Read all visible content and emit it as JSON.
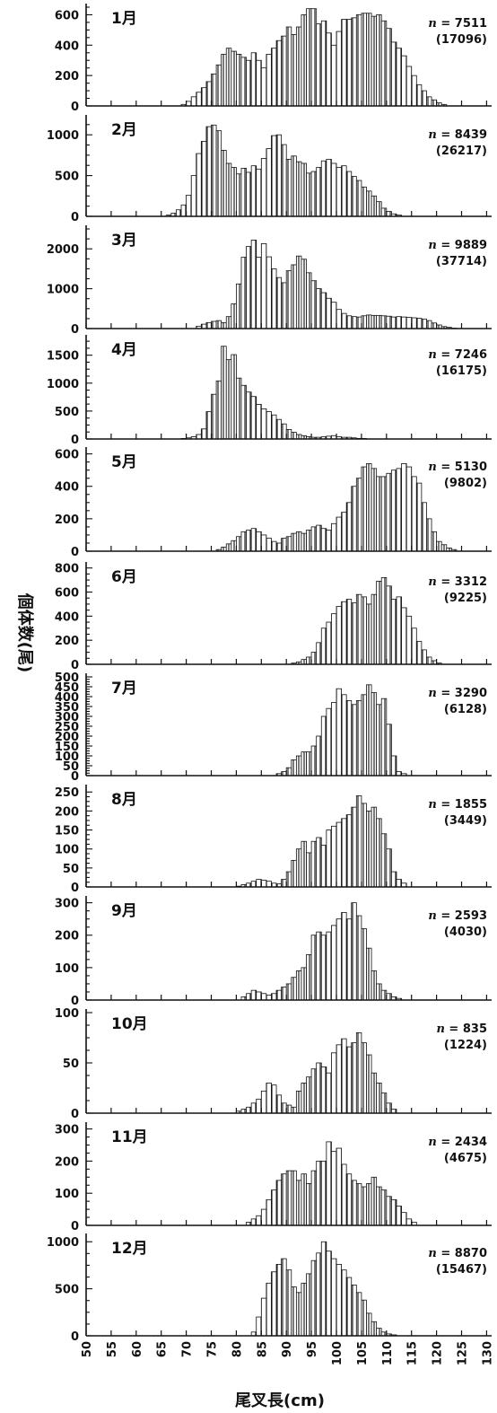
{
  "chart_data": {
    "type": "bar",
    "xlabel": "尾叉長(cm)",
    "ylabel": "個体数(尾)",
    "x_ticks": [
      50,
      55,
      60,
      65,
      70,
      75,
      80,
      85,
      90,
      95,
      100,
      105,
      110,
      115,
      120,
      125,
      130
    ],
    "xlim": [
      50,
      131
    ],
    "bin_start": 50,
    "bin_width": 1,
    "panels": [
      {
        "month": "1月",
        "n_text": "n = 7511",
        "total_text": "(17096)",
        "ylim": [
          0,
          650
        ],
        "yticks": [
          0,
          200,
          400,
          600
        ],
        "values": [
          0,
          0,
          0,
          0,
          0,
          0,
          0,
          0,
          0,
          0,
          0,
          0,
          0,
          0,
          0,
          0,
          0,
          0,
          0,
          10,
          30,
          60,
          90,
          120,
          160,
          210,
          270,
          340,
          380,
          360,
          340,
          320,
          300,
          350,
          300,
          250,
          340,
          380,
          430,
          460,
          520,
          470,
          520,
          600,
          640,
          640,
          540,
          560,
          480,
          400,
          490,
          570,
          570,
          580,
          600,
          610,
          610,
          590,
          600,
          560,
          510,
          420,
          380,
          330,
          260,
          200,
          140,
          100,
          60,
          40,
          20,
          10,
          0,
          0,
          0,
          0,
          0,
          0,
          0,
          0,
          0
        ]
      },
      {
        "month": "2月",
        "n_text": "n = 8439",
        "total_text": "(26217)",
        "ylim": [
          0,
          1200
        ],
        "yticks": [
          0,
          500,
          1000
        ],
        "values": [
          0,
          0,
          0,
          0,
          0,
          0,
          0,
          0,
          0,
          0,
          0,
          0,
          0,
          0,
          0,
          0,
          15,
          40,
          80,
          140,
          260,
          500,
          770,
          920,
          1100,
          1120,
          1050,
          810,
          650,
          600,
          520,
          590,
          540,
          620,
          580,
          710,
          830,
          990,
          1000,
          880,
          700,
          740,
          670,
          650,
          530,
          550,
          600,
          680,
          700,
          650,
          600,
          620,
          550,
          490,
          440,
          360,
          310,
          250,
          180,
          100,
          60,
          30,
          15,
          0,
          0,
          0,
          0,
          0,
          0,
          0,
          0,
          0,
          0,
          0,
          0,
          0,
          0,
          0,
          0,
          0,
          0
        ]
      },
      {
        "month": "3月",
        "n_text": "n = 9889",
        "total_text": "(37714)",
        "ylim": [
          0,
          2500
        ],
        "yticks": [
          0,
          1000,
          2000
        ],
        "values": [
          0,
          0,
          0,
          0,
          0,
          0,
          0,
          0,
          0,
          0,
          0,
          0,
          0,
          0,
          0,
          0,
          0,
          0,
          0,
          0,
          0,
          0,
          60,
          110,
          150,
          180,
          200,
          150,
          300,
          620,
          1120,
          1790,
          2060,
          2220,
          1790,
          2130,
          1800,
          1500,
          1280,
          1150,
          1450,
          1600,
          1820,
          1740,
          1400,
          1200,
          1000,
          900,
          760,
          660,
          480,
          380,
          320,
          300,
          290,
          320,
          340,
          330,
          330,
          320,
          310,
          290,
          300,
          290,
          280,
          270,
          260,
          240,
          200,
          140,
          90,
          50,
          30,
          10,
          0,
          0,
          0,
          0,
          0,
          0,
          0,
          0,
          0
        ]
      },
      {
        "month": "4月",
        "n_text": "n = 7246",
        "total_text": "(16175)",
        "ylim": [
          0,
          1800
        ],
        "yticks": [
          0,
          500,
          1000,
          1500
        ],
        "values": [
          0,
          0,
          0,
          0,
          0,
          0,
          0,
          0,
          0,
          0,
          0,
          0,
          0,
          0,
          0,
          0,
          0,
          0,
          0,
          10,
          20,
          40,
          80,
          180,
          490,
          800,
          1040,
          1660,
          1420,
          1510,
          1090,
          960,
          840,
          760,
          620,
          540,
          490,
          430,
          350,
          270,
          170,
          120,
          80,
          60,
          40,
          30,
          30,
          40,
          50,
          60,
          40,
          30,
          30,
          20,
          10,
          10,
          0,
          0,
          0,
          0,
          0,
          0,
          0,
          0,
          0,
          0,
          0,
          0,
          0,
          0,
          0,
          0,
          0,
          0,
          0,
          0,
          0,
          0,
          0,
          0,
          0
        ]
      },
      {
        "month": "5月",
        "n_text": "n = 5130",
        "total_text": "(9802)",
        "ylim": [
          0,
          620
        ],
        "yticks": [
          0,
          200,
          400,
          600
        ],
        "values": [
          0,
          0,
          0,
          0,
          0,
          0,
          0,
          0,
          0,
          0,
          0,
          0,
          0,
          0,
          0,
          0,
          0,
          0,
          0,
          0,
          0,
          0,
          0,
          0,
          0,
          0,
          10,
          25,
          45,
          65,
          90,
          120,
          130,
          140,
          120,
          100,
          80,
          60,
          50,
          80,
          90,
          110,
          120,
          110,
          130,
          150,
          160,
          140,
          130,
          170,
          210,
          240,
          300,
          400,
          450,
          520,
          540,
          510,
          460,
          460,
          480,
          500,
          510,
          540,
          520,
          460,
          420,
          300,
          200,
          120,
          60,
          40,
          20,
          10,
          0,
          0,
          0,
          0,
          0,
          0,
          0
        ]
      },
      {
        "month": "6月",
        "n_text": "n = 3312",
        "total_text": "(9225)",
        "ylim": [
          0,
          820
        ],
        "yticks": [
          0,
          200,
          400,
          600,
          800
        ],
        "values": [
          0,
          0,
          0,
          0,
          0,
          0,
          0,
          0,
          0,
          0,
          0,
          0,
          0,
          0,
          0,
          0,
          0,
          0,
          0,
          0,
          0,
          0,
          0,
          0,
          0,
          0,
          0,
          0,
          0,
          0,
          0,
          0,
          0,
          0,
          0,
          0,
          0,
          0,
          0,
          0,
          0,
          10,
          20,
          40,
          60,
          100,
          180,
          300,
          350,
          420,
          480,
          520,
          540,
          510,
          580,
          560,
          500,
          580,
          690,
          720,
          650,
          540,
          560,
          470,
          400,
          300,
          190,
          120,
          60,
          30,
          10,
          0,
          0,
          0,
          0,
          0,
          0,
          0,
          0,
          0,
          0
        ]
      },
      {
        "month": "7月",
        "n_text": "n = 3290",
        "total_text": "(6128)",
        "ylim": [
          0,
          500
        ],
        "yticks": [
          0,
          50,
          100,
          150,
          200,
          250,
          300,
          350,
          400,
          450,
          500
        ],
        "values": [
          0,
          0,
          0,
          0,
          0,
          0,
          0,
          0,
          0,
          0,
          0,
          0,
          0,
          0,
          0,
          0,
          0,
          0,
          0,
          0,
          0,
          0,
          0,
          0,
          0,
          0,
          0,
          0,
          0,
          0,
          0,
          0,
          0,
          0,
          0,
          0,
          0,
          0,
          10,
          20,
          40,
          80,
          100,
          120,
          120,
          150,
          200,
          300,
          340,
          370,
          440,
          410,
          380,
          360,
          380,
          410,
          460,
          420,
          360,
          390,
          260,
          100,
          20,
          10,
          0,
          0,
          0,
          0,
          0,
          0,
          0,
          0,
          0,
          0,
          0,
          0,
          0,
          0,
          0,
          0,
          0
        ]
      },
      {
        "month": "8月",
        "n_text": "n = 1855",
        "total_text": "(3449)",
        "ylim": [
          0,
          260
        ],
        "yticks": [
          0,
          50,
          100,
          150,
          200,
          250
        ],
        "values": [
          0,
          0,
          0,
          0,
          0,
          0,
          0,
          0,
          0,
          0,
          0,
          0,
          0,
          0,
          0,
          0,
          0,
          0,
          0,
          0,
          0,
          0,
          0,
          0,
          0,
          0,
          0,
          0,
          0,
          0,
          2,
          6,
          10,
          15,
          20,
          18,
          15,
          10,
          8,
          20,
          40,
          70,
          100,
          120,
          90,
          120,
          130,
          110,
          150,
          160,
          170,
          180,
          190,
          210,
          240,
          220,
          200,
          210,
          180,
          140,
          100,
          40,
          20,
          10,
          0,
          0,
          0,
          0,
          0,
          0,
          0,
          0,
          0,
          0,
          0,
          0,
          0,
          0,
          0,
          0,
          0
        ]
      },
      {
        "month": "9月",
        "n_text": "n = 2593",
        "total_text": "(4030)",
        "ylim": [
          0,
          310
        ],
        "yticks": [
          0,
          100,
          200,
          300
        ],
        "values": [
          0,
          0,
          0,
          0,
          0,
          0,
          0,
          0,
          0,
          0,
          0,
          0,
          0,
          0,
          0,
          0,
          0,
          0,
          0,
          0,
          0,
          0,
          0,
          0,
          0,
          0,
          0,
          0,
          0,
          0,
          0,
          10,
          20,
          30,
          25,
          20,
          15,
          20,
          30,
          40,
          50,
          70,
          90,
          100,
          140,
          200,
          210,
          200,
          210,
          230,
          250,
          270,
          250,
          300,
          260,
          220,
          160,
          90,
          50,
          30,
          20,
          10,
          5,
          0,
          0,
          0,
          0,
          0,
          0,
          0,
          0,
          0,
          0,
          0,
          0,
          0,
          0,
          0,
          0,
          0,
          0
        ]
      },
      {
        "month": "10月",
        "n_text": "n = 835",
        "total_text": "(1224)",
        "ylim": [
          0,
          100
        ],
        "yticks": [
          0,
          50,
          100
        ],
        "values": [
          0,
          0,
          0,
          0,
          0,
          0,
          0,
          0,
          0,
          0,
          0,
          0,
          0,
          0,
          0,
          0,
          0,
          0,
          0,
          0,
          0,
          0,
          0,
          0,
          0,
          0,
          0,
          0,
          0,
          0,
          2,
          4,
          6,
          10,
          14,
          22,
          30,
          28,
          18,
          10,
          8,
          6,
          22,
          30,
          36,
          44,
          50,
          46,
          40,
          60,
          68,
          74,
          66,
          70,
          80,
          70,
          58,
          40,
          30,
          20,
          10,
          4,
          0,
          0,
          0,
          0,
          0,
          0,
          0,
          0,
          0,
          0,
          0,
          0,
          0,
          0,
          0,
          0,
          0,
          0,
          0
        ]
      },
      {
        "month": "11月",
        "n_text": "n = 2434",
        "total_text": "(4675)",
        "ylim": [
          0,
          310
        ],
        "yticks": [
          0,
          100,
          200,
          300
        ],
        "values": [
          0,
          0,
          0,
          0,
          0,
          0,
          0,
          0,
          0,
          0,
          0,
          0,
          0,
          0,
          0,
          0,
          0,
          0,
          0,
          0,
          0,
          0,
          0,
          0,
          0,
          0,
          0,
          0,
          0,
          0,
          0,
          0,
          10,
          20,
          30,
          50,
          80,
          110,
          140,
          160,
          170,
          170,
          140,
          160,
          130,
          170,
          200,
          200,
          260,
          230,
          240,
          190,
          160,
          140,
          130,
          120,
          130,
          150,
          120,
          110,
          90,
          80,
          60,
          40,
          20,
          10,
          0,
          0,
          0,
          0,
          0,
          0,
          0,
          0,
          0,
          0,
          0,
          0,
          0,
          0,
          0
        ]
      },
      {
        "month": "12月",
        "n_text": "n = 8870",
        "total_text": "(15467)",
        "ylim": [
          0,
          1050
        ],
        "yticks": [
          0,
          500,
          1000
        ],
        "values": [
          0,
          0,
          0,
          0,
          0,
          0,
          0,
          0,
          0,
          0,
          0,
          0,
          0,
          0,
          0,
          0,
          0,
          0,
          0,
          0,
          0,
          0,
          0,
          0,
          0,
          0,
          0,
          0,
          0,
          0,
          0,
          0,
          0,
          40,
          200,
          400,
          560,
          680,
          760,
          820,
          700,
          520,
          460,
          560,
          660,
          800,
          880,
          1000,
          900,
          820,
          760,
          700,
          620,
          540,
          460,
          380,
          240,
          150,
          80,
          40,
          20,
          10,
          0,
          0,
          0,
          0,
          0,
          0,
          0,
          0,
          0,
          0,
          0,
          0,
          0,
          0,
          0,
          0,
          0
        ]
      }
    ]
  }
}
